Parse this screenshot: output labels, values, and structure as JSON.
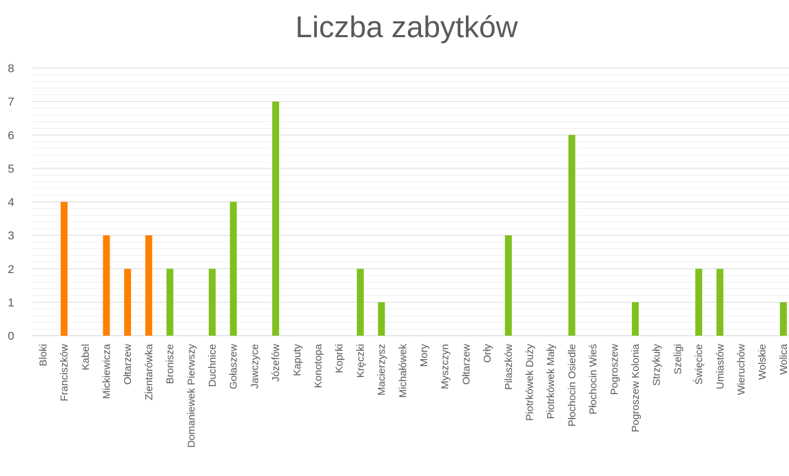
{
  "chart_data": {
    "type": "bar",
    "title": "Liczba zabytków",
    "categories": [
      "Bloki",
      "Franciszków",
      "Kabel",
      "Mickiewicza",
      "Ołtarzew",
      "Zientarówka",
      "Bronisze",
      "Domaniewek Pierwszy",
      "Duchnice",
      "Gołaszew",
      "Jawczyce",
      "Józefów",
      "Kaputy",
      "Konotopa",
      "Koprki",
      "Kręczki",
      "Macierzysz",
      "Michałówek",
      "Mory",
      "Myszczyn",
      "Ołtarzew",
      "Orły",
      "Pilaszków",
      "Piotrkówek Duży",
      "Piotrkówek Mały",
      "Płochocin Osiedle",
      "Płochocin Wieś",
      "Pogroszew",
      "Pogroszew Kolonia",
      "Strzykuły",
      "Szeligi",
      "Święcice",
      "Umiastów",
      "Wieruchów",
      "Wolskie",
      "Wolica"
    ],
    "values": [
      0,
      4,
      0,
      3,
      2,
      3,
      2,
      0,
      2,
      4,
      0,
      7,
      0,
      0,
      0,
      2,
      1,
      0,
      0,
      0,
      0,
      0,
      3,
      0,
      0,
      6,
      0,
      0,
      1,
      0,
      0,
      2,
      2,
      0,
      0,
      1
    ],
    "colors": [
      "#ff8000",
      "#ff8000",
      "#ff8000",
      "#ff8000",
      "#ff8000",
      "#ff8000",
      "#80c01e",
      "#80c01e",
      "#80c01e",
      "#80c01e",
      "#80c01e",
      "#80c01e",
      "#80c01e",
      "#80c01e",
      "#80c01e",
      "#80c01e",
      "#80c01e",
      "#80c01e",
      "#80c01e",
      "#80c01e",
      "#80c01e",
      "#80c01e",
      "#80c01e",
      "#80c01e",
      "#80c01e",
      "#80c01e",
      "#80c01e",
      "#80c01e",
      "#80c01e",
      "#80c01e",
      "#80c01e",
      "#80c01e",
      "#80c01e",
      "#80c01e",
      "#80c01e",
      "#80c01e"
    ],
    "ylim": [
      0,
      8
    ],
    "yticks": [
      0,
      1,
      2,
      3,
      4,
      5,
      6,
      7,
      8
    ],
    "grid": true,
    "minor_grid_divisions": 5
  }
}
